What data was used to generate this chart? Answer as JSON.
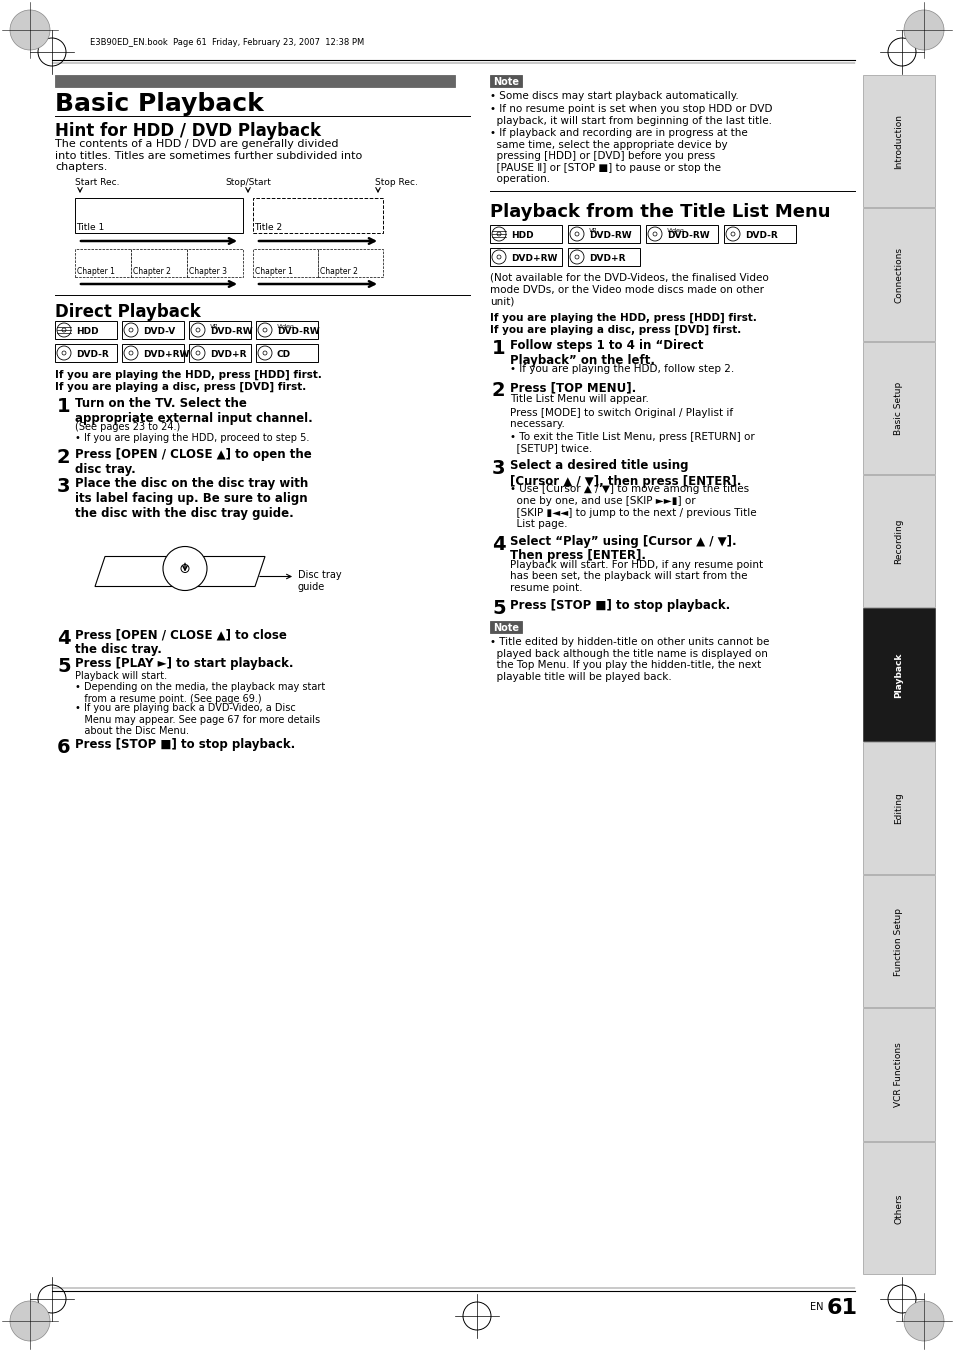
{
  "page_bg": "#ffffff",
  "page_num": "61",
  "header_text": "E3B90ED_EN.book  Page 61  Friday, February 23, 2007  12:38 PM",
  "title_bar_color": "#666666",
  "title_main": "Basic Playback",
  "section1_title": "Hint for HDD / DVD Playback",
  "section1_body": "The contents of a HDD / DVD are generally divided\ninto titles. Titles are sometimes further subdivided into\nchapters.",
  "section2_title": "Direct Playback",
  "direct_note": "If you are playing the HDD, press [HDD] first.\nIf you are playing a disc, press [DVD] first.",
  "direct_steps": [
    {
      "num": "1",
      "bold": "Turn on the TV. Select the\nappropriate external input channel.",
      "sub": [
        "(See pages 23 to 24.)",
        "• If you are playing the HDD, proceed to step 5."
      ]
    },
    {
      "num": "2",
      "bold": "Press [OPEN / CLOSE ▲] to open the\ndisc tray.",
      "sub": []
    },
    {
      "num": "3",
      "bold": "Place the disc on the disc tray with\nits label facing up. Be sure to align\nthe disc with the disc tray guide.",
      "sub": []
    },
    {
      "num": "4",
      "bold": "Press [OPEN / CLOSE ▲] to close\nthe disc tray.",
      "sub": []
    },
    {
      "num": "5",
      "bold": "Press [PLAY ►] to start playback.",
      "sub": [
        "Playback will start.",
        "• Depending on the media, the playback may start\n   from a resume point. (See page 69.)",
        "• If you are playing back a DVD-Video, a Disc\n   Menu may appear. See page 67 for more details\n   about the Disc Menu."
      ]
    },
    {
      "num": "6",
      "bold": "Press [STOP ■] to stop playback.",
      "sub": []
    }
  ],
  "note1_items": [
    "• Some discs may start playback automatically.",
    "• If no resume point is set when you stop HDD or DVD\n  playback, it will start from beginning of the last title.",
    "• If playback and recording are in progress at the\n  same time, select the appropriate device by\n  pressing [HDD] or [DVD] before you press\n  [PAUSE Ⅱ] or [STOP ■] to pause or stop the\n  operation."
  ],
  "section3_title": "Playback from the Title List Menu",
  "playback_note_top": "(Not available for the DVD-Videos, the finalised Video\nmode DVDs, or the Video mode discs made on other\nunit)",
  "playback_note2": "If you are playing the HDD, press [HDD] first.\nIf you are playing a disc, press [DVD] first.",
  "playback_steps": [
    {
      "num": "1",
      "bold": "Follow steps 1 to 4 in “Direct\nPlayback” on the left.",
      "sub": [
        "• If you are playing the HDD, follow step 2."
      ]
    },
    {
      "num": "2",
      "bold": "Press [TOP MENU].",
      "sub": [
        "Title List Menu will appear.",
        "Press [MODE] to switch Original / Playlist if\nnecessary.",
        "• To exit the Title List Menu, press [RETURN] or\n  [SETUP] twice."
      ]
    },
    {
      "num": "3",
      "bold": "Select a desired title using\n[Cursor ▲ / ▼], then press [ENTER].",
      "sub": [
        "• Use [Cursor ▲ / ▼] to move among the titles\n  one by one, and use [SKIP ►►▮] or\n  [SKIP ▮◄◄] to jump to the next / previous Title\n  List page."
      ]
    },
    {
      "num": "4",
      "bold": "Select “Play” using [Cursor ▲ / ▼].\nThen press [ENTER].",
      "sub": [
        "Playback will start. For HDD, if any resume point\nhas been set, the playback will start from the\nresume point."
      ]
    },
    {
      "num": "5",
      "bold": "Press [STOP ■] to stop playback.",
      "sub": []
    }
  ],
  "note2_items": [
    "• Title edited by hidden-title on other units cannot be\n  played back although the title name is displayed on\n  the Top Menu. If you play the hidden-title, the next\n  playable title will be played back."
  ],
  "sidebar_labels": [
    "Introduction",
    "Connections",
    "Basic Setup",
    "Recording",
    "Playback",
    "Editing",
    "Function Setup",
    "VCR Functions",
    "Others"
  ],
  "sidebar_active": "Playback"
}
